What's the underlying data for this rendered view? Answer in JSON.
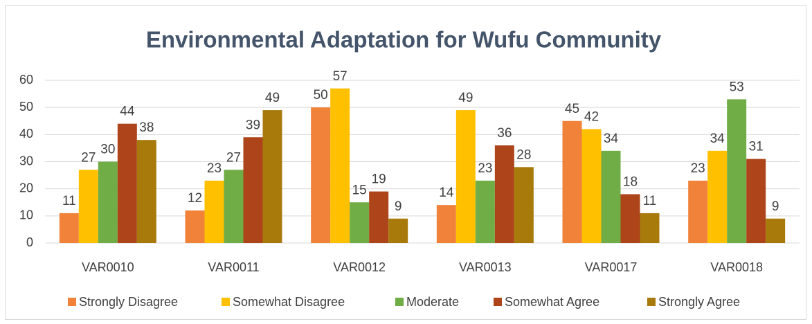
{
  "chart_data": {
    "type": "bar",
    "title": "Environmental Adaptation for Wufu Community",
    "categories": [
      "VAR0010",
      "VAR0011",
      "VAR0012",
      "VAR0013",
      "VAR0017",
      "VAR0018"
    ],
    "series": [
      {
        "name": "Strongly Disagree",
        "color": "#f0823a",
        "values": [
          11,
          12,
          50,
          14,
          45,
          23
        ]
      },
      {
        "name": "Somewhat Disagree",
        "color": "#ffc000",
        "values": [
          27,
          23,
          57,
          49,
          42,
          34
        ]
      },
      {
        "name": "Moderate",
        "color": "#70ad47",
        "values": [
          30,
          27,
          15,
          23,
          34,
          53
        ]
      },
      {
        "name": "Somewhat Agree",
        "color": "#ad441a",
        "values": [
          44,
          39,
          19,
          36,
          18,
          31
        ]
      },
      {
        "name": "Strongly Agree",
        "color": "#a87a0c",
        "values": [
          38,
          49,
          9,
          28,
          11,
          9
        ]
      }
    ],
    "ylim": [
      0,
      60
    ],
    "yticks": [
      0,
      10,
      20,
      30,
      40,
      50,
      60
    ],
    "grid": true,
    "legend": "bottom"
  }
}
